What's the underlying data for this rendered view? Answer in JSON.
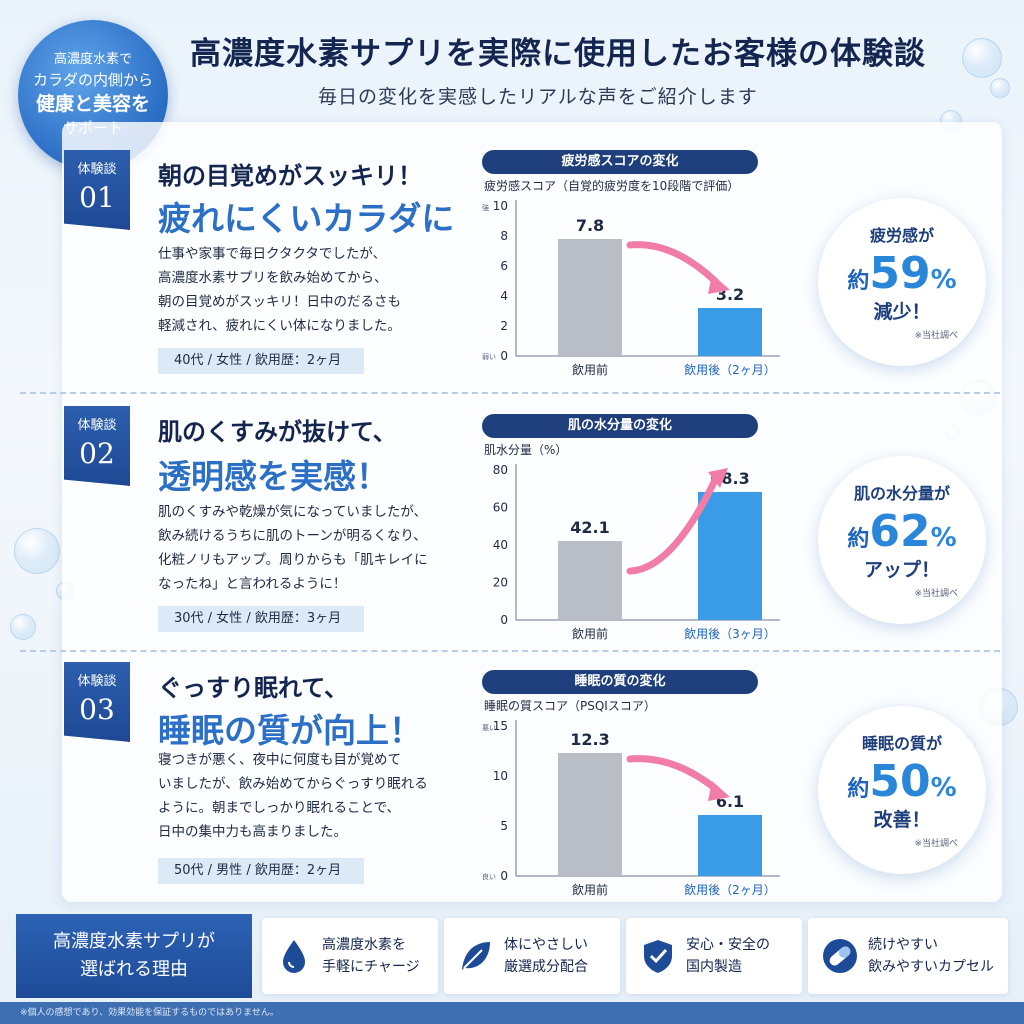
{
  "badge": {
    "line1": "高濃度水素で",
    "line2": "カラダの内側から",
    "line3": "健康と美容を",
    "line4": "サポート"
  },
  "header": {
    "title": "高濃度水素サプリを実際に使用したお客様の体験談",
    "subtitle": "毎日の変化を実感したリアルな声をご紹介します"
  },
  "testimonials": [
    {
      "tag_label": "体験談",
      "tag_number": "01",
      "headline_a": "朝の目覚めがスッキリ！",
      "headline_b": "疲れにくいカラダに",
      "body": [
        "仕事や家事で毎日クタクタでしたが、",
        "高濃度水素サプリを飲み始めてから、",
        "朝の目覚めがスッキリ！日中のだるさも",
        "軽減され、疲れにくい体になりました。"
      ],
      "profile": "40代 / 女性 / 飲用歴：2ヶ月",
      "result": {
        "line1": "疲労感が",
        "yaku": "約",
        "num": "59",
        "pct": "%",
        "line3": "減少！",
        "note": "※当社調べ"
      }
    },
    {
      "tag_label": "体験談",
      "tag_number": "02",
      "headline_a": "肌のくすみが抜けて、",
      "headline_b": "透明感を実感！",
      "body": [
        "肌のくすみや乾燥が気になっていましたが、",
        "飲み続けるうちに肌のトーンが明るくなり、",
        "化粧ノリもアップ。周りからも「肌キレイに",
        "なったね」と言われるように！"
      ],
      "profile": "30代 / 女性 / 飲用歴：3ヶ月",
      "result": {
        "line1": "肌の水分量が",
        "yaku": "約",
        "num": "62",
        "pct": "%",
        "line3": "アップ！",
        "note": "※当社調べ"
      }
    },
    {
      "tag_label": "体験談",
      "tag_number": "03",
      "headline_a": "ぐっすり眠れて、",
      "headline_b": "睡眠の質が向上！",
      "body": [
        "寝つきが悪く、夜中に何度も目が覚めて",
        "いましたが、飲み始めてからぐっすり眠れる",
        "ように。朝までしっかり眠れることで、",
        "日中の集中力も高まりました。"
      ],
      "profile": "50代 / 男性 / 飲用歴：2ヶ月",
      "result": {
        "line1": "睡眠の質が",
        "yaku": "約",
        "num": "50",
        "pct": "%",
        "line3": "改善！",
        "note": "※当社調べ"
      }
    }
  ],
  "chart_data": [
    {
      "type": "bar",
      "title": "疲労感スコアの変化",
      "ylabel": "疲労感スコア（自覚的疲労度を10段階で評価）",
      "y_top_marker": "強",
      "y_bottom_marker": "弱い",
      "categories": [
        "飲用前",
        "飲用後（2ヶ月）"
      ],
      "values": [
        7.8,
        3.2
      ],
      "value_labels": [
        "7.8",
        "3.2"
      ],
      "ylim": [
        0,
        10
      ],
      "yticks": [
        0,
        2,
        4,
        6,
        8,
        10
      ],
      "bar_colors": [
        "#b9bdc5",
        "#3a9be6"
      ]
    },
    {
      "type": "bar",
      "title": "肌の水分量の変化",
      "ylabel": "肌水分量（%）",
      "y_top_marker": "",
      "y_bottom_marker": "",
      "categories": [
        "飲用前",
        "飲用後（3ヶ月）"
      ],
      "values": [
        42.1,
        68.3
      ],
      "value_labels": [
        "42.1",
        "68.3"
      ],
      "ylim": [
        0,
        80
      ],
      "yticks": [
        0,
        20,
        40,
        60,
        80
      ],
      "bar_colors": [
        "#b9bdc5",
        "#3a9be6"
      ]
    },
    {
      "type": "bar",
      "title": "睡眠の質の変化",
      "ylabel": "睡眠の質スコア（PSQIスコア）",
      "y_top_marker": "悪い",
      "y_bottom_marker": "良い",
      "categories": [
        "飲用前",
        "飲用後（2ヶ月）"
      ],
      "values": [
        12.3,
        6.1
      ],
      "value_labels": [
        "12.3",
        "6.1"
      ],
      "ylim": [
        0,
        15
      ],
      "yticks": [
        0,
        5,
        10,
        15
      ],
      "bar_colors": [
        "#b9bdc5",
        "#3a9be6"
      ]
    }
  ],
  "footer": {
    "reason_line1": "高濃度水素サプリが",
    "reason_line2": "選ばれる理由",
    "features": [
      {
        "icon": "water-drop-icon",
        "line1": "高濃度水素を",
        "line2": "手軽にチャージ"
      },
      {
        "icon": "leaf-icon",
        "line1": "体にやさしい",
        "line2": "厳選成分配合"
      },
      {
        "icon": "shield-check-icon",
        "line1": "安心・安全の",
        "line2": "国内製造"
      },
      {
        "icon": "capsule-icon",
        "line1": "続けやすい",
        "line2": "飲みやすいカプセル"
      }
    ],
    "disclaimer": "※個人の感想であり、効果効能を保証するものではありません。"
  },
  "colors": {
    "navy": "#1e3f7c",
    "accent_blue": "#2a86d8",
    "bar_gray": "#b9bdc5",
    "bar_blue": "#3a9be6",
    "arrow_pink": "#f27ca8"
  }
}
